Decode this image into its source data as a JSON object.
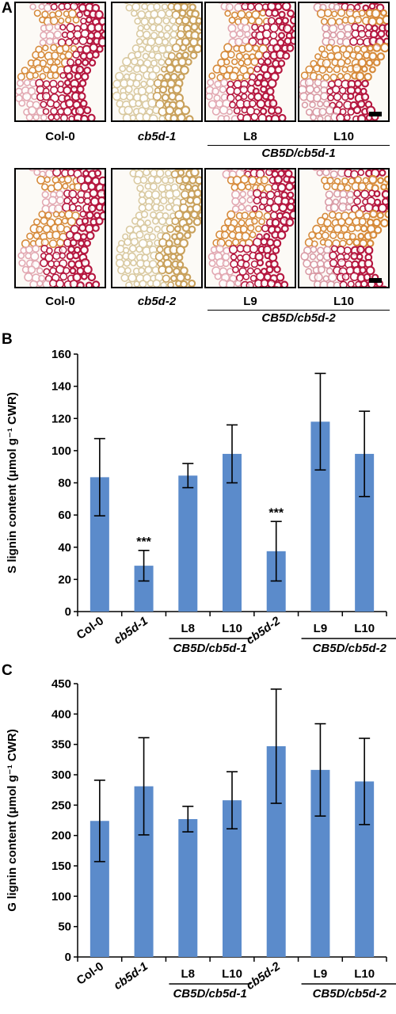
{
  "panels": {
    "a_letter": "A",
    "b_letter": "B",
    "c_letter": "C"
  },
  "micrographs": {
    "row1": {
      "labels": [
        "Col-0",
        "cb5d-1",
        "L8",
        "L10"
      ],
      "group_label": "CB5D/cb5d-1",
      "variants": [
        "red",
        "pale",
        "red",
        "mixed"
      ]
    },
    "row2": {
      "labels": [
        "Col-0",
        "cb5d-2",
        "L9",
        "L10"
      ],
      "group_label": "CB5D/cb5d-2",
      "variants": [
        "red",
        "pale",
        "red",
        "mixed"
      ]
    }
  },
  "colors": {
    "bar": "#5B8BCB",
    "stain_red": "#B5173F",
    "stain_orange": "#D68A3A"
  },
  "chart_data": [
    {
      "type": "bar",
      "panel": "B",
      "ylabel": "S lignin content (μmol g⁻¹ CWR)",
      "ylim": [
        0,
        160
      ],
      "yticks": [
        0,
        20,
        40,
        60,
        80,
        100,
        120,
        140,
        160
      ],
      "categories": [
        "Col-0",
        "cb5d-1",
        "L8",
        "L10",
        "cb5d-2",
        "L9",
        "L10"
      ],
      "category_italic": [
        false,
        true,
        false,
        false,
        true,
        false,
        false
      ],
      "category_rotated": [
        true,
        true,
        false,
        false,
        true,
        false,
        false
      ],
      "values": [
        83.5,
        28.5,
        84.5,
        98,
        37.5,
        118,
        98
      ],
      "errors": [
        24,
        9.5,
        7.5,
        18,
        18.5,
        30,
        26.5
      ],
      "annotations": [
        {
          "index": 1,
          "text": "***"
        },
        {
          "index": 4,
          "text": "***"
        }
      ],
      "groups": [
        {
          "label": "CB5D/cb5d-1",
          "from": 2,
          "to": 3
        },
        {
          "label": "CB5D/cb5d-2",
          "from": 5,
          "to": 6
        }
      ]
    },
    {
      "type": "bar",
      "panel": "C",
      "ylabel": "G lignin content (μmol g⁻¹ CWR)",
      "ylim": [
        0,
        450
      ],
      "yticks": [
        0,
        50,
        100,
        150,
        200,
        250,
        300,
        350,
        400,
        450
      ],
      "categories": [
        "Col-0",
        "cb5d-1",
        "L8",
        "L10",
        "cb5d-2",
        "L9",
        "L10"
      ],
      "category_italic": [
        false,
        true,
        false,
        false,
        true,
        false,
        false
      ],
      "category_rotated": [
        true,
        true,
        false,
        false,
        true,
        false,
        false
      ],
      "values": [
        224,
        281,
        227,
        258,
        347,
        308,
        289
      ],
      "errors": [
        67,
        80,
        21,
        47,
        94,
        76,
        71
      ],
      "annotations": [],
      "groups": [
        {
          "label": "CB5D/cb5d-1",
          "from": 2,
          "to": 3
        },
        {
          "label": "CB5D/cb5d-2",
          "from": 5,
          "to": 6
        }
      ]
    }
  ]
}
